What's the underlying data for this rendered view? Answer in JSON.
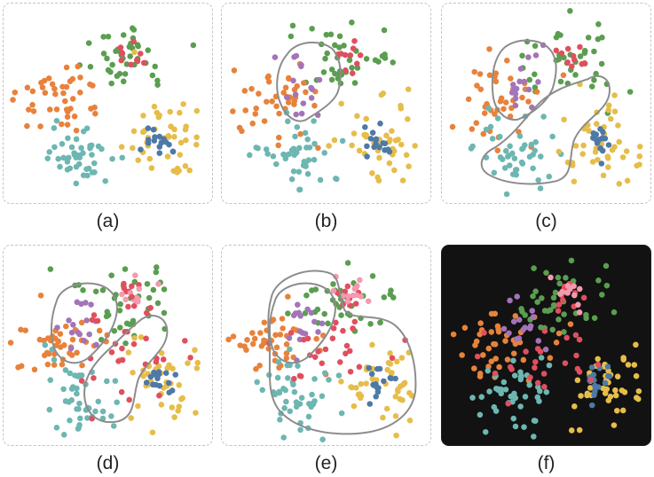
{
  "colors": {
    "green": "#5a9e4f",
    "red": "#e04f5f",
    "pink": "#f39aae",
    "purple": "#a374b8",
    "orange": "#e8823b",
    "teal": "#6db6b2",
    "blue": "#4e79a7",
    "yellow": "#e6bd4a",
    "lasso": "#8c8c8c",
    "dark_bg": "#121212"
  },
  "panels": [
    {
      "label": "(a)",
      "theme": "light",
      "lasso_count": 0
    },
    {
      "label": "(b)",
      "theme": "light",
      "lasso_count": 1
    },
    {
      "label": "(c)",
      "theme": "light",
      "lasso_count": 2
    },
    {
      "label": "(d)",
      "theme": "light",
      "lasso_count": 2
    },
    {
      "label": "(e)",
      "theme": "light",
      "lasso_count": 2
    },
    {
      "label": "(f)",
      "theme": "dark",
      "lasso_count": 0
    }
  ]
}
